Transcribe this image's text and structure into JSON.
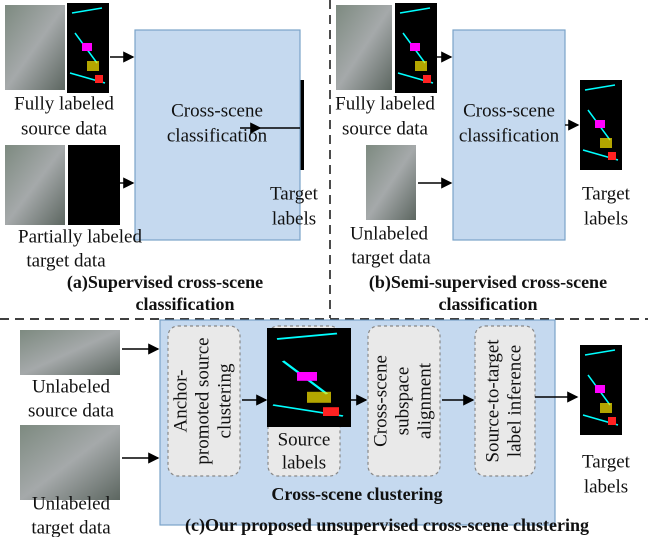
{
  "panel_a": {
    "process": [
      "Cross-scene",
      "classification"
    ],
    "source_label": [
      "Fully labeled",
      "source data"
    ],
    "target_label": [
      "Partially labeled",
      "target data"
    ],
    "output_label": [
      "Target",
      "labels"
    ],
    "caption": [
      "(a)Supervised cross-scene",
      "classification"
    ]
  },
  "panel_b": {
    "process": [
      "Cross-scene",
      "classification"
    ],
    "source_label": [
      "Fully labeled",
      "source data"
    ],
    "target_label": [
      "Unlabeled",
      "target data"
    ],
    "output_label": [
      "Target",
      "labels"
    ],
    "caption": [
      "(b)Semi-supervised cross-scene",
      "classification"
    ]
  },
  "panel_c": {
    "source_label": [
      "Unlabeled",
      "source data"
    ],
    "target_label": [
      "Unlabeled",
      "target data"
    ],
    "steps": [
      [
        "Anchor-",
        "promoted source",
        "clustering"
      ],
      [
        "Source",
        "labels"
      ],
      [
        "Cross-scene",
        "subspace",
        "alignment"
      ],
      [
        "Source-to-target",
        "label inference"
      ]
    ],
    "module": "Cross-scene clustering",
    "output_label": [
      "Target",
      "labels"
    ],
    "caption": "(c)Our proposed unsupervised cross-scene clustering"
  }
}
